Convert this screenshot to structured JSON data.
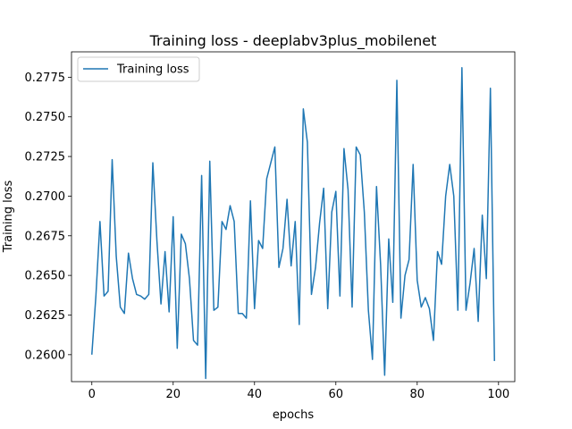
{
  "chart_data": {
    "type": "line",
    "title": "Training loss - deeplabv3plus_mobilenet",
    "xlabel": "epochs",
    "ylabel": "Training loss",
    "xlim": [
      -5,
      104
    ],
    "ylim": [
      0.2583,
      0.2791
    ],
    "xticks": [
      0,
      20,
      40,
      60,
      80,
      100
    ],
    "yticks": [
      0.26,
      0.2625,
      0.265,
      0.2675,
      0.27,
      0.2725,
      0.275,
      0.2775
    ],
    "ytick_labels": [
      "0.2600",
      "0.2625",
      "0.2650",
      "0.2675",
      "0.2700",
      "0.2725",
      "0.2750",
      "0.2775"
    ],
    "grid": false,
    "legend_position": "top-left",
    "series": [
      {
        "name": "Training loss",
        "color": "#1f77b4",
        "x": [
          0,
          1,
          2,
          3,
          4,
          5,
          6,
          7,
          8,
          9,
          10,
          11,
          12,
          13,
          14,
          15,
          16,
          17,
          18,
          19,
          20,
          21,
          22,
          23,
          24,
          25,
          26,
          27,
          28,
          29,
          30,
          31,
          32,
          33,
          34,
          35,
          36,
          37,
          38,
          39,
          40,
          41,
          42,
          43,
          44,
          45,
          46,
          47,
          48,
          49,
          50,
          51,
          52,
          53,
          54,
          55,
          56,
          57,
          58,
          59,
          60,
          61,
          62,
          63,
          64,
          65,
          66,
          67,
          68,
          69,
          70,
          71,
          72,
          73,
          74,
          75,
          76,
          77,
          78,
          79,
          80,
          81,
          82,
          83,
          84,
          85,
          86,
          87,
          88,
          89,
          90,
          91,
          92,
          93,
          94,
          95,
          96,
          97,
          98,
          99
        ],
        "values": [
          0.26,
          0.2637,
          0.2684,
          0.2637,
          0.264,
          0.2723,
          0.2662,
          0.263,
          0.2626,
          0.2664,
          0.2648,
          0.2638,
          0.2637,
          0.2635,
          0.2638,
          0.2721,
          0.2672,
          0.2632,
          0.2665,
          0.2627,
          0.2687,
          0.2604,
          0.2676,
          0.267,
          0.2648,
          0.2609,
          0.2606,
          0.2713,
          0.2585,
          0.2722,
          0.2628,
          0.263,
          0.2684,
          0.2679,
          0.2694,
          0.2684,
          0.2626,
          0.2626,
          0.2623,
          0.2697,
          0.2629,
          0.2672,
          0.2667,
          0.2711,
          0.2721,
          0.2731,
          0.2655,
          0.2667,
          0.2698,
          0.2656,
          0.2684,
          0.2619,
          0.2755,
          0.2734,
          0.2638,
          0.2655,
          0.2683,
          0.2705,
          0.2629,
          0.269,
          0.2703,
          0.2637,
          0.273,
          0.2704,
          0.263,
          0.2731,
          0.2726,
          0.269,
          0.2628,
          0.2597,
          0.2706,
          0.2657,
          0.2587,
          0.2673,
          0.2633,
          0.2773,
          0.2623,
          0.265,
          0.266,
          0.272,
          0.2647,
          0.263,
          0.2636,
          0.2629,
          0.2609,
          0.2665,
          0.2657,
          0.27,
          0.272,
          0.27,
          0.2628,
          0.2781,
          0.2628,
          0.2645,
          0.2667,
          0.2621,
          0.2688,
          0.2648,
          0.2768,
          0.2596
        ]
      }
    ]
  }
}
